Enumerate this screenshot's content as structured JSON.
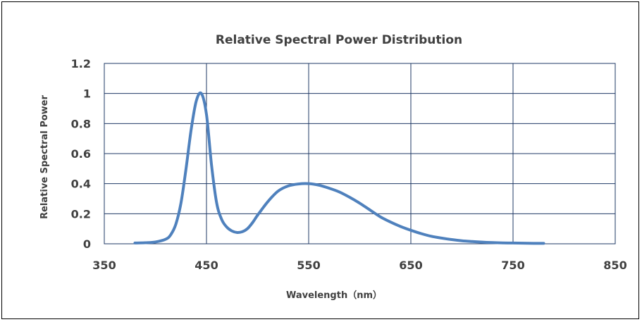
{
  "chart_data": {
    "type": "line",
    "title": "Relative Spectral Power Distribution",
    "xlabel": "Wavelength（nm）",
    "ylabel": "Relative Spectral Power",
    "xlim": [
      350,
      850
    ],
    "ylim": [
      0,
      1.2
    ],
    "x_ticks": [
      350,
      450,
      550,
      650,
      750,
      850
    ],
    "y_ticks": [
      0,
      0.2,
      0.4,
      0.6,
      0.8,
      1,
      1.2
    ],
    "x_tick_labels": [
      "350",
      "450",
      "550",
      "650",
      "750",
      "850"
    ],
    "y_tick_labels": [
      "0",
      "0.2",
      "0.4",
      "0.6",
      "0.8",
      "1",
      "1.2"
    ],
    "grid": true,
    "legend": "none",
    "series": [
      {
        "color": "#4f81bd",
        "x": [
          380,
          390,
          400,
          410,
          415,
          420,
          425,
          430,
          435,
          440,
          445,
          450,
          455,
          460,
          465,
          470,
          475,
          480,
          485,
          490,
          495,
          500,
          510,
          520,
          530,
          540,
          550,
          560,
          570,
          580,
          590,
          600,
          610,
          620,
          630,
          640,
          650,
          660,
          670,
          680,
          690,
          700,
          710,
          720,
          730,
          740,
          750,
          760,
          770,
          780
        ],
        "y": [
          0.005,
          0.007,
          0.012,
          0.03,
          0.06,
          0.13,
          0.27,
          0.5,
          0.76,
          0.95,
          1.0,
          0.86,
          0.52,
          0.27,
          0.16,
          0.11,
          0.085,
          0.075,
          0.08,
          0.1,
          0.14,
          0.19,
          0.28,
          0.35,
          0.385,
          0.398,
          0.4,
          0.39,
          0.37,
          0.345,
          0.31,
          0.27,
          0.225,
          0.18,
          0.145,
          0.115,
          0.09,
          0.068,
          0.05,
          0.038,
          0.028,
          0.02,
          0.015,
          0.011,
          0.008,
          0.006,
          0.005,
          0.004,
          0.003,
          0.003
        ]
      }
    ]
  }
}
